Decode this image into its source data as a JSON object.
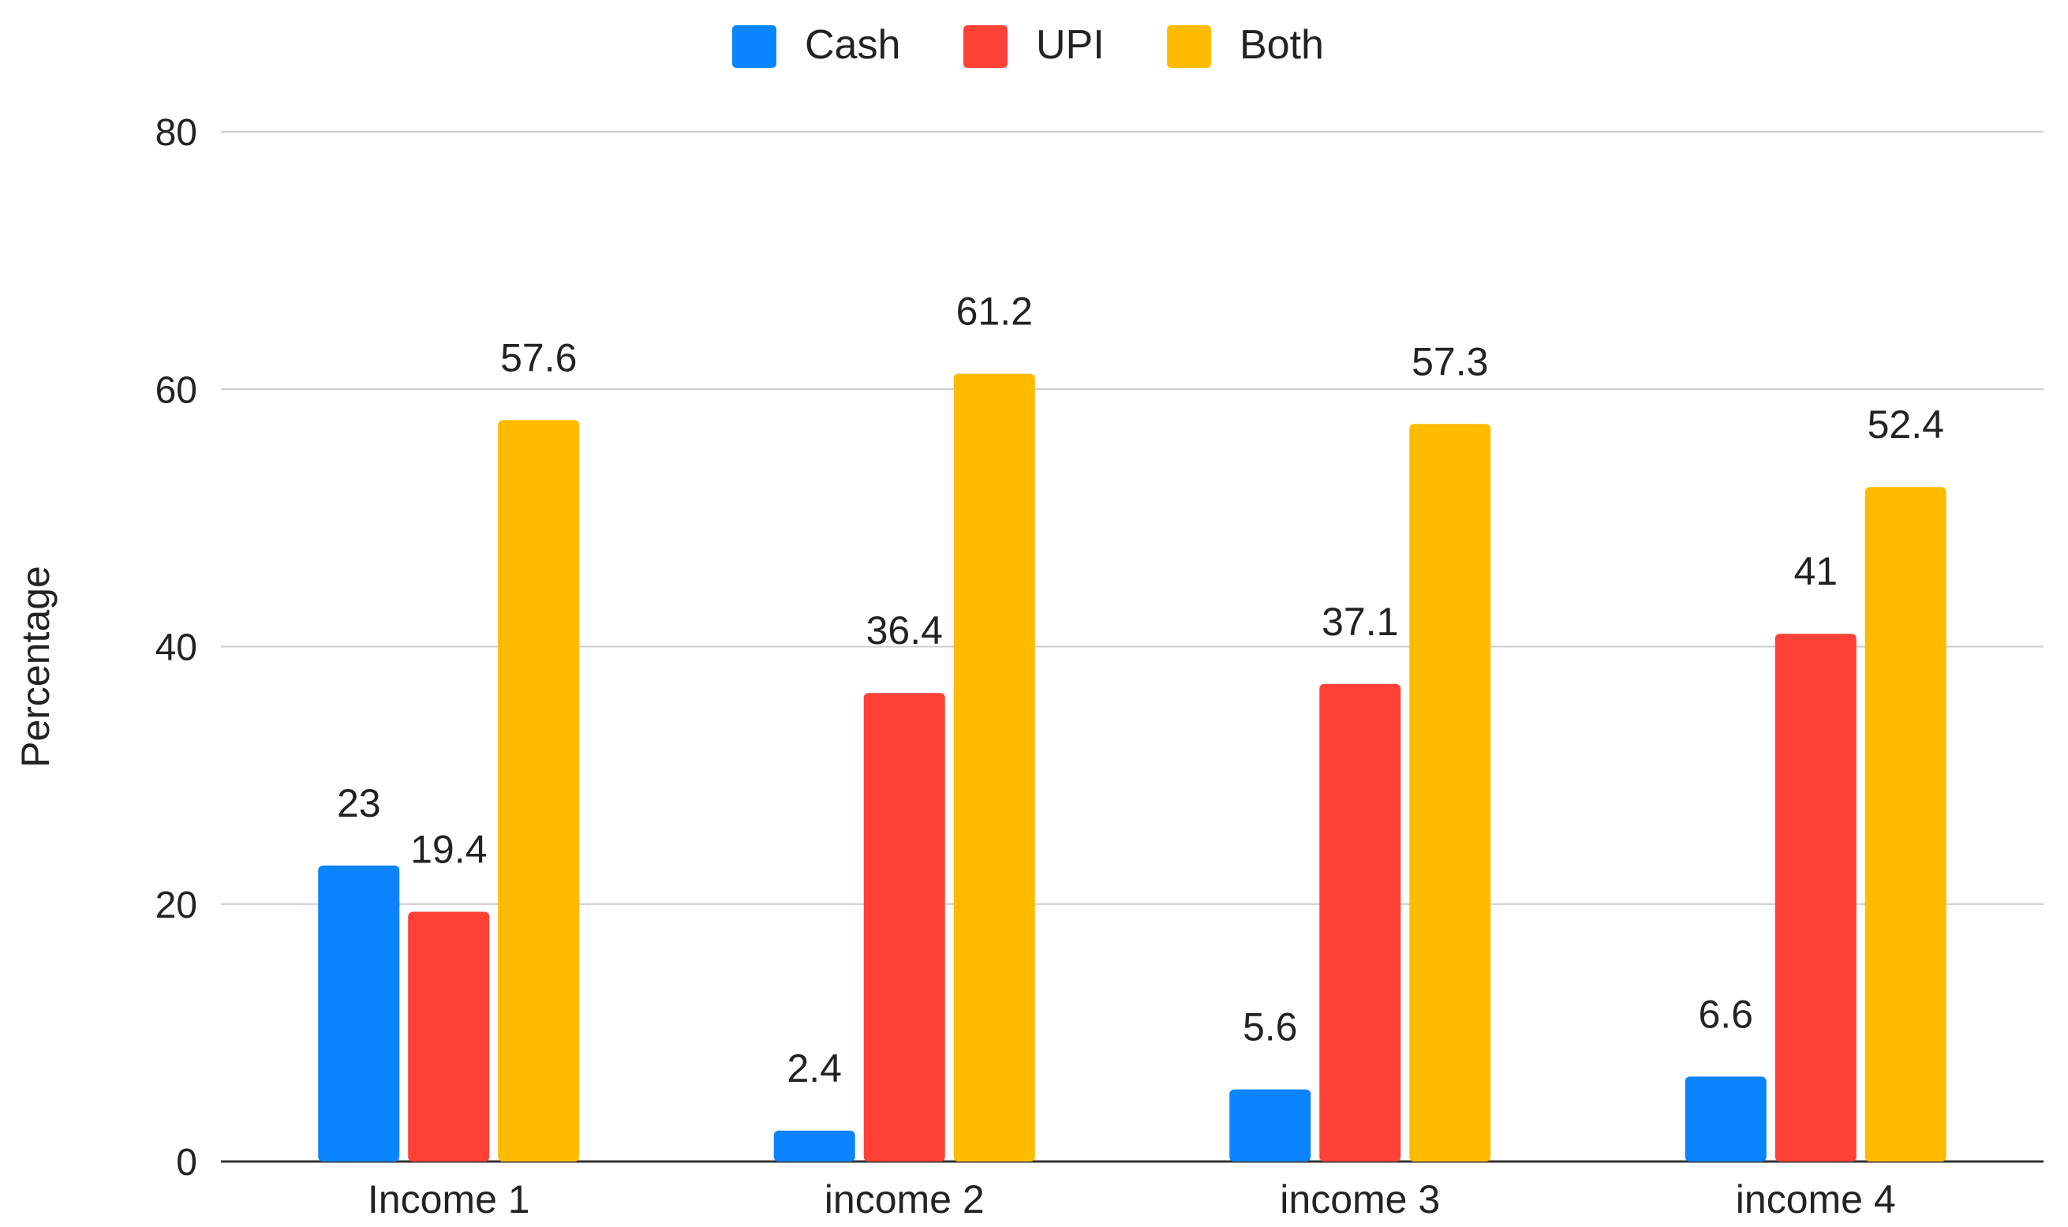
{
  "chart_data": {
    "type": "bar",
    "categories": [
      "Income 1",
      "income 2",
      "income 3",
      "income 4"
    ],
    "series": [
      {
        "name": "Cash",
        "color": "#0a84ff",
        "values": [
          23,
          2.4,
          5.6,
          6.6
        ]
      },
      {
        "name": "UPI",
        "color": "#ff4136",
        "values": [
          19.4,
          36.4,
          37.1,
          41
        ]
      },
      {
        "name": "Both",
        "color": "#ffbb00",
        "values": [
          57.6,
          61.2,
          57.3,
          52.4
        ]
      }
    ],
    "title": "",
    "xlabel": "",
    "ylabel": "Percentage",
    "ylim": [
      0,
      80
    ],
    "yticks": [
      0,
      20,
      40,
      60,
      80
    ],
    "grid": true,
    "legend_position": "top-center",
    "data_labels": true
  }
}
